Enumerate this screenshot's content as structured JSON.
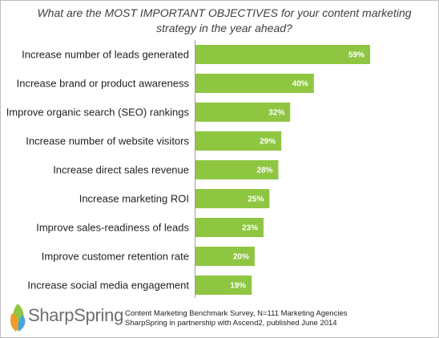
{
  "title": "What are the MOST IMPORTANT OBJECTIVES for your content marketing strategy in the year ahead?",
  "chart_data": {
    "type": "bar",
    "orientation": "horizontal",
    "title": "What are the MOST IMPORTANT OBJECTIVES for your content marketing strategy in the year ahead?",
    "categories": [
      "Increase number of leads generated",
      "Increase brand or product awareness",
      "Improve organic search (SEO) rankings",
      "Increase number of website visitors",
      "Increase direct sales revenue",
      "Increase marketing ROI",
      "Improve sales-readiness of leads",
      "Improve customer retention rate",
      "Increase social media engagement"
    ],
    "values": [
      59,
      40,
      32,
      29,
      28,
      25,
      23,
      20,
      19
    ],
    "value_labels": [
      "59%",
      "40%",
      "32%",
      "29%",
      "28%",
      "25%",
      "23%",
      "20%",
      "19%"
    ],
    "unit": "%",
    "xlim": [
      0,
      60
    ],
    "grid": false,
    "legend": "none",
    "bar_color": "#8ec641"
  },
  "footer": {
    "logo_text": "SharpSpring",
    "source_line1": "Content Marketing Benchmark Survey, N=111 Marketing Agencies",
    "source_line2": "SharpSpring in partnership with Ascend2, published June 2014"
  }
}
